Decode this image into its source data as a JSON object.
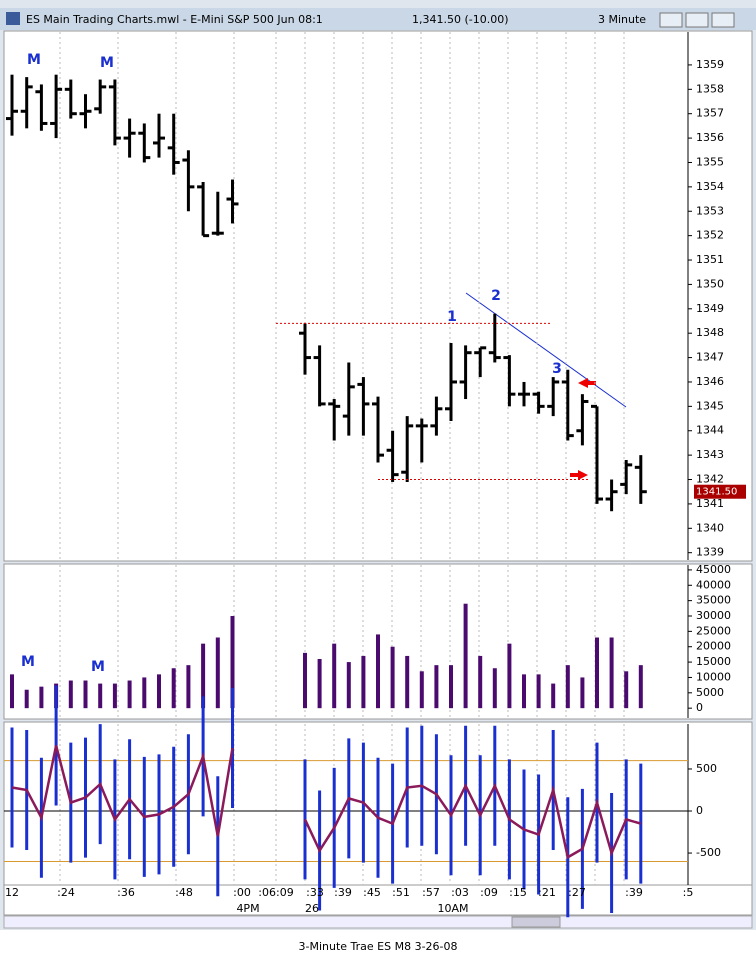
{
  "window": {
    "title": "ES Main Trading Charts.mwl - E-Mini S&P 500 Jun 08:1",
    "price": "1,341.50 (-10.00)",
    "interval": "3 Minute"
  },
  "caption": "3-Minute Trae ES M8 3-26-08",
  "time_axis": {
    "labels": [
      "12",
      ":24",
      ":36",
      ":48",
      ":00",
      ":06:09",
      ":33",
      ":39",
      ":45",
      ":51",
      ":57",
      ":03",
      ":09",
      ":15",
      ":21",
      ":27",
      ":39",
      ":5"
    ],
    "dates": [
      "4PM",
      "26",
      "10AM"
    ]
  },
  "chart_data": [
    {
      "type": "ohlc",
      "color": "#000000",
      "ylim": [
        1338.7,
        1360.35
      ],
      "yticks": [
        1339,
        1340,
        1341,
        1342,
        1343,
        1344,
        1345,
        1346,
        1347,
        1348,
        1349,
        1350,
        1351,
        1352,
        1353,
        1354,
        1355,
        1356,
        1357,
        1358,
        1359
      ],
      "last_price": {
        "value": 1341.5,
        "label": "1341.50"
      },
      "lines": [
        1348.4,
        1342
      ],
      "annotations": [
        "M",
        "M",
        "1",
        "2",
        "3"
      ],
      "sessions": [
        {
          "open": [
            1356.8,
            1357.1,
            1357.9,
            1356.6,
            1358.0,
            1357.0,
            1357.2,
            1358.1,
            1356.0,
            1356.2,
            1355.8,
            1355.6,
            1355.1,
            1354.0,
            1352.1,
            1353.5
          ],
          "high": [
            1358.6,
            1358.5,
            1358.2,
            1358.6,
            1358.4,
            1357.8,
            1358.4,
            1358.4,
            1356.8,
            1356.6,
            1357.0,
            1357.0,
            1355.5,
            1354.2,
            1353.8,
            1354.3
          ],
          "low": [
            1356.1,
            1356.4,
            1356.3,
            1356.0,
            1356.8,
            1356.4,
            1357.0,
            1355.7,
            1355.2,
            1355.0,
            1355.2,
            1354.5,
            1353.0,
            1352.0,
            1352.0,
            1352.5
          ],
          "close": [
            1357.1,
            1358.1,
            1356.6,
            1358.0,
            1357.0,
            1357.1,
            1358.1,
            1356.0,
            1356.2,
            1355.2,
            1356.0,
            1355.0,
            1354.0,
            1352.0,
            1352.1,
            1353.3
          ]
        },
        {
          "open": [
            1348.0,
            1347.0,
            1345.1,
            1344.6,
            1345.9,
            1345.1,
            1343.2,
            1342.3,
            1344.2,
            1344.2,
            1344.9,
            1346.0,
            1347.2,
            1347.2,
            1347.0,
            1345.5,
            1345.5,
            1345.0,
            1346.0,
            1344.0,
            1345.0,
            1341.2,
            1341.8,
            1342.5
          ],
          "high": [
            1348.4,
            1347.5,
            1345.3,
            1346.8,
            1346.2,
            1345.4,
            1344.0,
            1344.6,
            1344.5,
            1345.4,
            1347.6,
            1347.5,
            1347.4,
            1348.8,
            1347.1,
            1346.0,
            1345.6,
            1346.2,
            1346.5,
            1345.5,
            1345.0,
            1342.0,
            1342.8,
            1343.0
          ],
          "low": [
            1346.3,
            1345.0,
            1343.6,
            1343.8,
            1343.8,
            1342.7,
            1341.9,
            1341.9,
            1342.7,
            1343.8,
            1344.4,
            1345.3,
            1346.2,
            1346.8,
            1345.0,
            1345.0,
            1344.7,
            1344.6,
            1343.6,
            1343.4,
            1341.0,
            1340.7,
            1341.4,
            1341.0
          ],
          "close": [
            1347.0,
            1345.1,
            1345.0,
            1345.8,
            1345.1,
            1343.0,
            1342.2,
            1344.2,
            1344.2,
            1344.9,
            1346.0,
            1347.2,
            1347.4,
            1347.0,
            1345.5,
            1345.5,
            1345.0,
            1346.0,
            1343.8,
            1345.2,
            1341.2,
            1341.5,
            1342.6,
            1341.5
          ]
        }
      ]
    },
    {
      "type": "bar",
      "color": "#4b0a6e",
      "ylim": [
        -3200,
        46600
      ],
      "yticks": [
        0,
        5000,
        10000,
        15000,
        20000,
        25000,
        30000,
        35000,
        40000,
        45000
      ],
      "annotations": [
        "M",
        "M"
      ],
      "sessions": [
        {
          "values": [
            11000,
            6000,
            7000,
            8000,
            9000,
            9000,
            8000,
            8000,
            9000,
            10000,
            11000,
            13000,
            14000,
            21000,
            23000,
            30000
          ]
        },
        {
          "values": [
            18000,
            16000,
            21000,
            15000,
            17000,
            24000,
            20000,
            17000,
            12000,
            14000,
            14000,
            34000,
            17000,
            13000,
            21000,
            11000,
            11000,
            8000,
            14000,
            10000,
            23000,
            23000,
            12000,
            14000
          ]
        }
      ]
    },
    {
      "type": "line",
      "color": "#8b1a5a",
      "bar_color": "#1a2fd0",
      "ylim": [
        -880,
        1035
      ],
      "yticks": [
        500,
        0,
        -500
      ],
      "bands": [
        600,
        -600
      ],
      "sessions": [
        {
          "values": [
            280,
            250,
            -80,
            780,
            100,
            160,
            320,
            -100,
            140,
            -70,
            -40,
            50,
            200,
            650,
            -300,
            750
          ]
        },
        {
          "values": [
            -100,
            -470,
            -200,
            150,
            100,
            -80,
            -150,
            280,
            300,
            200,
            -50,
            300,
            -50,
            300,
            -100,
            -220,
            -280,
            250,
            -550,
            -450,
            100,
            -500,
            -100,
            -150
          ]
        }
      ]
    }
  ]
}
